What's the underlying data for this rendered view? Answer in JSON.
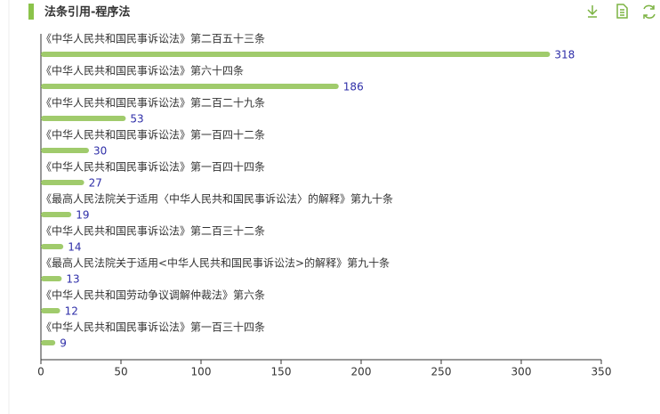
{
  "chart_data": {
    "type": "bar",
    "orientation": "horizontal",
    "title": "法条引用-程序法",
    "categories": [
      "《中华人民共和国民事诉讼法》第二百五十三条",
      "《中华人民共和国民事诉讼法》第六十四条",
      "《中华人民共和国民事诉讼法》第二百二十九条",
      "《中华人民共和国民事诉讼法》第一百四十二条",
      "《中华人民共和国民事诉讼法》第一百四十四条",
      "《最高人民法院关于适用〈中华人民共和国民事诉讼法〉的解释》第九十条",
      "《中华人民共和国民事诉讼法》第二百三十二条",
      "《最高人民法院关于适用<中华人民共和国民事诉讼法>的解释》第九十条",
      "《中华人民共和国劳动争议调解仲裁法》第六条",
      "《中华人民共和国民事诉讼法》第一百三十四条"
    ],
    "values": [
      318,
      186,
      53,
      30,
      27,
      19,
      14,
      13,
      12,
      9
    ],
    "color": "#a0cb6c",
    "value_label_color": "#2e2ea8",
    "xlim": [
      0,
      350
    ],
    "xticks": [
      0,
      50,
      100,
      150,
      200,
      250,
      300,
      350
    ],
    "grid": false
  }
}
